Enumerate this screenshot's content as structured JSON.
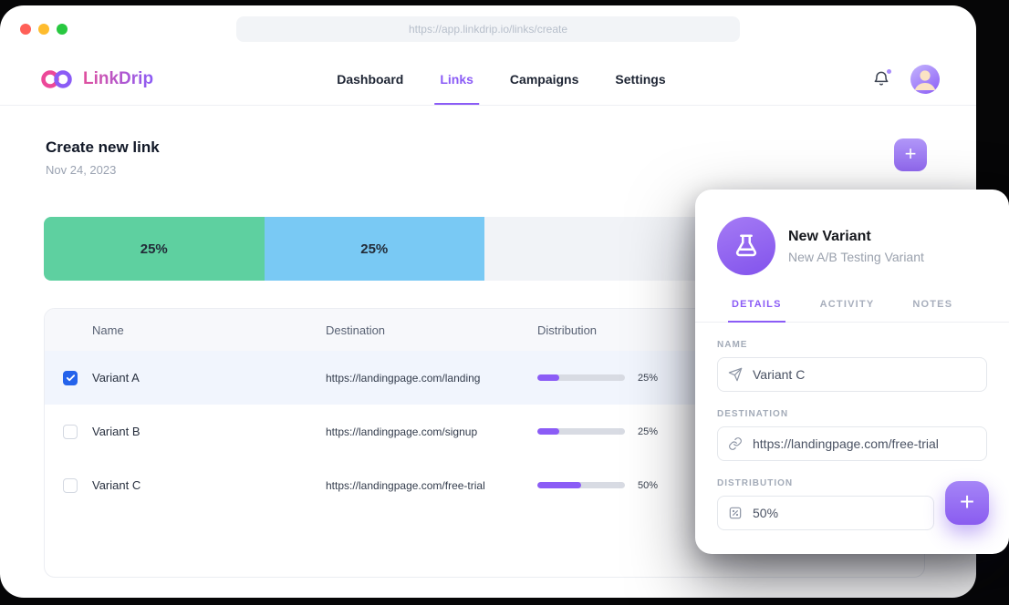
{
  "browser": {
    "url": "https://app.linkdrip.io/links/create"
  },
  "header": {
    "brand": "LinkDrip",
    "nav": [
      {
        "label": "Dashboard",
        "active": false
      },
      {
        "label": "Links",
        "active": true
      },
      {
        "label": "Campaigns",
        "active": false
      },
      {
        "label": "Settings",
        "active": false
      }
    ]
  },
  "page": {
    "title": "Create new link",
    "date": "Nov 24, 2023"
  },
  "icons": {
    "plus": "+"
  },
  "bar": {
    "segments": [
      {
        "label": "25%",
        "value": 25,
        "color": "#5ed0a0"
      },
      {
        "label": "25%",
        "value": 25,
        "color": "#79c9f4"
      },
      {
        "label": "",
        "value": 50,
        "color": "#f1f3f7"
      }
    ]
  },
  "table": {
    "columns": [
      "Name",
      "Destination",
      "Distribution"
    ],
    "rows": [
      {
        "name": "Variant A",
        "destination": "https://landingpage.com/landing",
        "distribution": 25,
        "distribution_label": "25%",
        "checked": true,
        "selected": true
      },
      {
        "name": "Variant B",
        "destination": "https://landingpage.com/signup",
        "distribution": 25,
        "distribution_label": "25%",
        "checked": false,
        "selected": false
      },
      {
        "name": "Variant C",
        "destination": "https://landingpage.com/free-trial",
        "distribution": 50,
        "distribution_label": "50%",
        "checked": false,
        "selected": false
      }
    ]
  },
  "panel": {
    "title": "New Variant",
    "subtitle": "New A/B Testing Variant",
    "tabs": [
      {
        "label": "DETAILS",
        "active": true
      },
      {
        "label": "ACTIVITY",
        "active": false
      },
      {
        "label": "NOTES",
        "active": false
      }
    ],
    "fields": {
      "name": {
        "label": "NAME",
        "value": "Variant C"
      },
      "destination": {
        "label": "DESTINATION",
        "value": "https://landingpage.com/free-trial"
      },
      "distribution": {
        "label": "DISTRIBUTION",
        "value": "50%"
      }
    }
  },
  "colors": {
    "accent": "#8b5cf6",
    "green": "#5ed0a0",
    "blue": "#79c9f4",
    "checkbox_checked": "#2563eb",
    "selected_row": "#f1f5fd"
  }
}
